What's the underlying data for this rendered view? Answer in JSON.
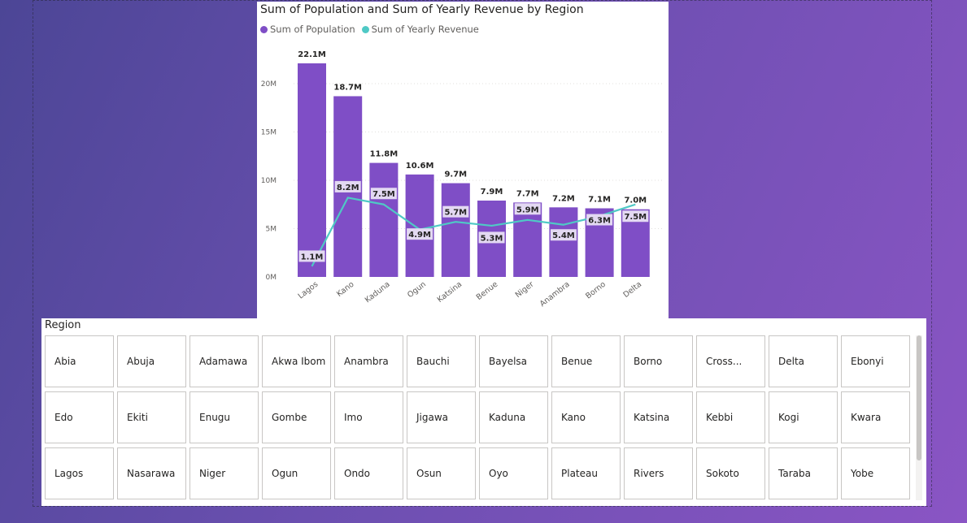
{
  "colors": {
    "population": "#7f4ec6",
    "revenue": "#4fc9c5",
    "label_bg": "#e3d9f2"
  },
  "chart_data": {
    "type": "bar",
    "title": "Sum of Population and Sum of Yearly Revenue by Region",
    "legend_position": "top-left",
    "grid": true,
    "categories": [
      "Lagos",
      "Kano",
      "Kaduna",
      "Ogun",
      "Katsina",
      "Benue",
      "Niger",
      "Anambra",
      "Borno",
      "Delta"
    ],
    "ylim": [
      0,
      22100000
    ],
    "y_ticks": [
      "0M",
      "5M",
      "10M",
      "15M",
      "20M"
    ],
    "y_tick_values": [
      0,
      5000000,
      10000000,
      15000000,
      20000000
    ],
    "series": [
      {
        "name": "Sum of Population",
        "type": "bar",
        "values": [
          22100000,
          18700000,
          11800000,
          10600000,
          9700000,
          7900000,
          7700000,
          7200000,
          7100000,
          7000000
        ],
        "labels": [
          "22.1M",
          "18.7M",
          "11.8M",
          "10.6M",
          "9.7M",
          "7.9M",
          "7.7M",
          "7.2M",
          "7.1M",
          "7.0M"
        ]
      },
      {
        "name": "Sum of Yearly Revenue",
        "type": "line",
        "values": [
          1100000,
          8200000,
          7500000,
          4900000,
          5700000,
          5300000,
          5900000,
          5400000,
          6300000,
          7500000
        ],
        "labels": [
          "1.1M",
          "8.2M",
          "7.5M",
          "4.9M",
          "5.7M",
          "5.3M",
          "5.9M",
          "5.4M",
          "6.3M",
          "7.5M"
        ]
      }
    ]
  },
  "slicer": {
    "title": "Region",
    "items": [
      "Abia",
      "Abuja",
      "Adamawa",
      "Akwa Ibom",
      "Anambra",
      "Bauchi",
      "Bayelsa",
      "Benue",
      "Borno",
      "Cross...",
      "Delta",
      "Ebonyi",
      "Edo",
      "Ekiti",
      "Enugu",
      "Gombe",
      "Imo",
      "Jigawa",
      "Kaduna",
      "Kano",
      "Katsina",
      "Kebbi",
      "Kogi",
      "Kwara",
      "Lagos",
      "Nasarawa",
      "Niger",
      "Ogun",
      "Ondo",
      "Osun",
      "Oyo",
      "Plateau",
      "Rivers",
      "Sokoto",
      "Taraba",
      "Yobe"
    ]
  }
}
